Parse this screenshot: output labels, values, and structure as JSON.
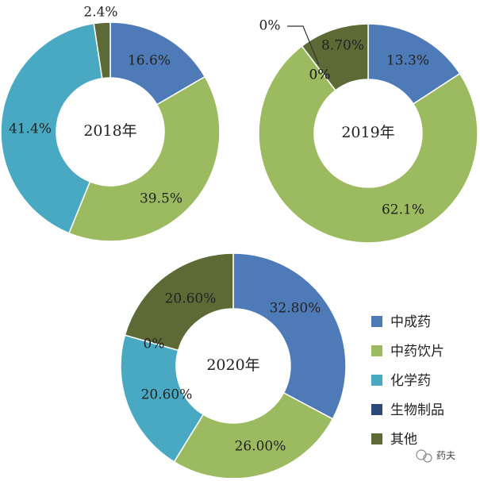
{
  "colors": {
    "中成药": "#4f7ab8",
    "中药饮片": "#9cba5f",
    "化学药": "#4aa9c2",
    "生物制品": "#2b4a78",
    "其他": "#5d6a36"
  },
  "chart_data": [
    {
      "type": "pie",
      "donut": true,
      "title": "2018年",
      "categories": [
        "中成药",
        "中药饮片",
        "化学药",
        "生物制品",
        "其他"
      ],
      "values": [
        16.6,
        39.5,
        41.4,
        0,
        2.4
      ],
      "labels": [
        "16.6%",
        "39.5%",
        "41.4%",
        "",
        "2.4%"
      ]
    },
    {
      "type": "pie",
      "donut": true,
      "title": "2019年",
      "categories": [
        "中成药",
        "中药饮片",
        "化学药",
        "生物制品",
        "其他"
      ],
      "values": [
        13.3,
        62.1,
        0,
        0,
        8.7
      ],
      "labels": [
        "13.3%",
        "62.1%",
        "0%",
        "0%",
        "8.70%"
      ]
    },
    {
      "type": "pie",
      "donut": true,
      "title": "2020年",
      "categories": [
        "中成药",
        "中药饮片",
        "化学药",
        "生物制品",
        "其他"
      ],
      "values": [
        32.8,
        26.0,
        20.6,
        0,
        20.6
      ],
      "labels": [
        "32.80%",
        "26.00%",
        "20.60%",
        "0%",
        "20.60%"
      ]
    }
  ],
  "legend": [
    "中成药",
    "中药饮片",
    "化学药",
    "生物制品",
    "其他"
  ],
  "watermark": "药夫"
}
